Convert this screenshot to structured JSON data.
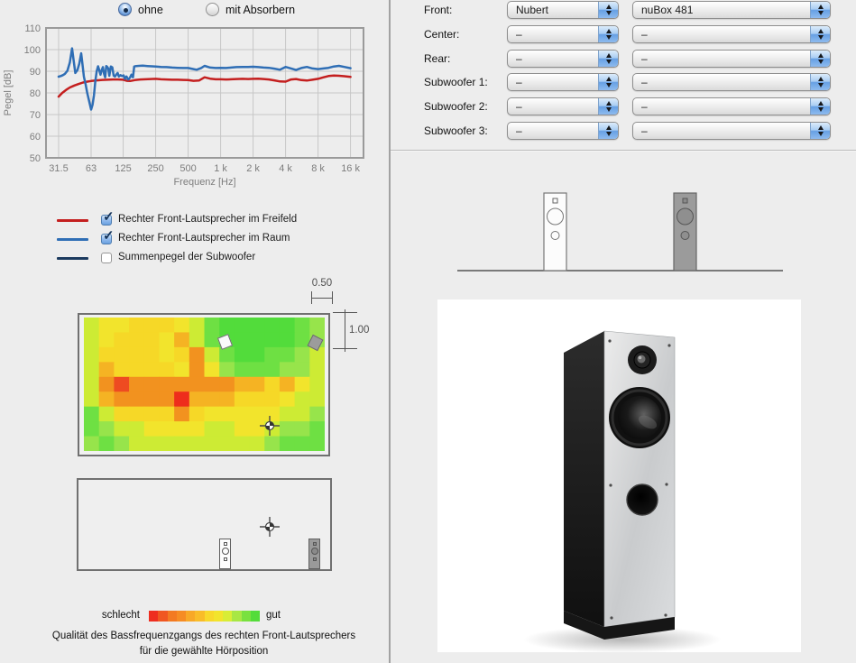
{
  "absorber_toggle": {
    "options": [
      {
        "label": "ohne",
        "selected": true
      },
      {
        "label": "mit Absorbern",
        "selected": false
      }
    ]
  },
  "icons": {
    "checkmark": "✓"
  },
  "legend": {
    "items": [
      {
        "label": "Rechter Front-Lautsprecher im Freifeld",
        "color": "#c41f1f",
        "checked": true
      },
      {
        "label": "Rechter Front-Lautsprecher im Raum",
        "color": "#2f6eb5",
        "checked": true
      },
      {
        "label": "Summenpegel der Subwoofer",
        "color": "#1b3a5e",
        "checked": false
      }
    ]
  },
  "room_top_view": {
    "dim_width_label": "0.50",
    "dim_height_label": "1.00"
  },
  "quality_scale": {
    "left_label": "schlecht",
    "right_label": "gut",
    "colors": [
      "#ee2e20",
      "#f05721",
      "#f37a22",
      "#f68c24",
      "#f8a827",
      "#f9bc29",
      "#f8d82b",
      "#f2e42c",
      "#d8ed36",
      "#a8e744",
      "#79e13f",
      "#54dc3a"
    ]
  },
  "caption": {
    "line1": "Qualität des Bassfrequenzgangs des rechten Front-Lautsprechers",
    "line2": "für die gewählte Hörposition"
  },
  "speaker_config": {
    "rows": [
      {
        "label": "Front:",
        "brand": "Nubert",
        "model": "nuBox 481"
      },
      {
        "label": "Center:",
        "brand": "–",
        "model": "–"
      },
      {
        "label": "Rear:",
        "brand": "–",
        "model": "–"
      },
      {
        "label": "Subwoofer 1:",
        "brand": "–",
        "model": "–"
      },
      {
        "label": "Subwoofer 2:",
        "brand": "–",
        "model": "–"
      },
      {
        "label": "Subwoofer 3:",
        "brand": "–",
        "model": "–"
      }
    ]
  },
  "chart_data": [
    {
      "type": "line",
      "title": "",
      "xlabel": "Frequenz [Hz]",
      "ylabel": "Pegel [dB]",
      "xscale": "log",
      "ylim": [
        50,
        110
      ],
      "grid": true,
      "yticks": [
        110,
        100,
        90,
        80,
        70,
        60,
        50
      ],
      "xticks": [
        {
          "f": 31.5,
          "label": "31.5"
        },
        {
          "f": 63,
          "label": "63"
        },
        {
          "f": 125,
          "label": "125"
        },
        {
          "f": 250,
          "label": "250"
        },
        {
          "f": 500,
          "label": "500"
        },
        {
          "f": 1000,
          "label": "1 k"
        },
        {
          "f": 2000,
          "label": "2 k"
        },
        {
          "f": 4000,
          "label": "4 k"
        },
        {
          "f": 8000,
          "label": "8 k"
        },
        {
          "f": 16000,
          "label": "16 k"
        }
      ],
      "series": [
        {
          "name": "Rechter Front-Lautsprecher im Freifeld",
          "color": "#c41f1f",
          "points": [
            [
              31.5,
              78.3
            ],
            [
              34,
              80
            ],
            [
              37,
              81.4
            ],
            [
              40,
              82.5
            ],
            [
              44,
              83.4
            ],
            [
              48,
              84.1
            ],
            [
              53,
              84.8
            ],
            [
              58,
              85.2
            ],
            [
              63,
              85.5
            ],
            [
              71,
              85.8
            ],
            [
              80,
              86
            ],
            [
              90,
              86.1
            ],
            [
              100,
              86.2
            ],
            [
              112,
              86.2
            ],
            [
              125,
              86.1
            ],
            [
              135,
              85.6
            ],
            [
              145,
              85.5
            ],
            [
              160,
              85.9
            ],
            [
              180,
              86.2
            ],
            [
              200,
              86.3
            ],
            [
              224,
              86.4
            ],
            [
              250,
              86.5
            ],
            [
              280,
              86.3
            ],
            [
              315,
              86.2
            ],
            [
              355,
              86.1
            ],
            [
              400,
              86.1
            ],
            [
              450,
              86
            ],
            [
              500,
              85.9
            ],
            [
              560,
              85.6
            ],
            [
              630,
              85.7
            ],
            [
              710,
              87.2
            ],
            [
              800,
              86.6
            ],
            [
              900,
              86.3
            ],
            [
              1000,
              86.3
            ],
            [
              1120,
              86.2
            ],
            [
              1250,
              86.3
            ],
            [
              1400,
              86.4
            ],
            [
              1600,
              86.5
            ],
            [
              1800,
              86.4
            ],
            [
              2000,
              86.5
            ],
            [
              2240,
              86.6
            ],
            [
              2500,
              86.4
            ],
            [
              2800,
              86.2
            ],
            [
              3150,
              85.8
            ],
            [
              3550,
              85.3
            ],
            [
              4000,
              85.2
            ],
            [
              4500,
              86.2
            ],
            [
              5000,
              86.4
            ],
            [
              5600,
              85.9
            ],
            [
              6300,
              85.7
            ],
            [
              7100,
              86.1
            ],
            [
              8000,
              86.5
            ],
            [
              9000,
              87.2
            ],
            [
              10000,
              87.8
            ],
            [
              11200,
              88
            ],
            [
              12500,
              87.9
            ],
            [
              14000,
              87.7
            ],
            [
              16000,
              87.4
            ]
          ]
        },
        {
          "name": "Rechter Front-Lautsprecher im Raum",
          "color": "#2f6eb5",
          "points": [
            [
              31.5,
              87.5
            ],
            [
              33,
              87.8
            ],
            [
              34.5,
              88.2
            ],
            [
              36,
              88.8
            ],
            [
              38,
              90.2
            ],
            [
              40,
              94
            ],
            [
              42,
              100.6
            ],
            [
              43.5,
              94.5
            ],
            [
              45,
              89.2
            ],
            [
              47,
              90.5
            ],
            [
              49,
              93.5
            ],
            [
              51,
              98.3
            ],
            [
              52.5,
              93
            ],
            [
              54,
              87.5
            ],
            [
              56,
              84
            ],
            [
              58,
              80
            ],
            [
              60,
              76.8
            ],
            [
              63,
              72.3
            ],
            [
              65,
              74.5
            ],
            [
              67,
              79
            ],
            [
              69,
              85.5
            ],
            [
              71,
              90
            ],
            [
              73,
              92.3
            ],
            [
              75,
              90.4
            ],
            [
              77,
              88.4
            ],
            [
              79,
              90.6
            ],
            [
              81,
              91.9
            ],
            [
              83,
              88.9
            ],
            [
              85,
              87.2
            ],
            [
              87,
              92.4
            ],
            [
              89,
              92
            ],
            [
              91,
              91.2
            ],
            [
              93,
              87.9
            ],
            [
              96,
              92.2
            ],
            [
              99,
              91.8
            ],
            [
              102,
              88
            ],
            [
              105,
              87.6
            ],
            [
              108,
              88.5
            ],
            [
              111,
              89.2
            ],
            [
              114,
              87.6
            ],
            [
              118,
              88.2
            ],
            [
              122,
              87.8
            ],
            [
              126,
              88.1
            ],
            [
              130,
              86.5
            ],
            [
              134,
              87.6
            ],
            [
              139,
              86.2
            ],
            [
              144,
              86.9
            ],
            [
              149,
              88.4
            ],
            [
              154,
              87.2
            ],
            [
              158,
              92.2
            ],
            [
              165,
              92.4
            ],
            [
              175,
              92.5
            ],
            [
              190,
              92.6
            ],
            [
              210,
              92.4
            ],
            [
              230,
              92.3
            ],
            [
              250,
              92.2
            ],
            [
              280,
              92
            ],
            [
              315,
              91.9
            ],
            [
              355,
              91.7
            ],
            [
              400,
              91.6
            ],
            [
              450,
              91.5
            ],
            [
              500,
              91.5
            ],
            [
              560,
              91
            ],
            [
              600,
              90.7
            ],
            [
              660,
              91.5
            ],
            [
              710,
              92.5
            ],
            [
              800,
              91.7
            ],
            [
              900,
              91.5
            ],
            [
              1000,
              91.6
            ],
            [
              1120,
              91.5
            ],
            [
              1250,
              91.7
            ],
            [
              1400,
              91.9
            ],
            [
              1600,
              92
            ],
            [
              1800,
              92
            ],
            [
              2000,
              92.1
            ],
            [
              2240,
              91.9
            ],
            [
              2500,
              91.7
            ],
            [
              2800,
              91.6
            ],
            [
              3150,
              91.2
            ],
            [
              3550,
              90.7
            ],
            [
              4000,
              92
            ],
            [
              4500,
              91.3
            ],
            [
              5000,
              90.6
            ],
            [
              5600,
              91.5
            ],
            [
              6300,
              92
            ],
            [
              7100,
              91.3
            ],
            [
              8000,
              91
            ],
            [
              9000,
              91.3
            ],
            [
              10000,
              91.6
            ],
            [
              11200,
              92.2
            ],
            [
              12500,
              92.5
            ],
            [
              14000,
              92
            ],
            [
              16000,
              91.4
            ]
          ]
        }
      ]
    },
    {
      "type": "heatmap",
      "title": "",
      "rows": 9,
      "cols": 16,
      "grid": [
        [
          "#cdeb34",
          "#f2e42c",
          "#f2e42c",
          "#f6d827",
          "#f6d827",
          "#f6d827",
          "#f2e42c",
          "#cdeb34",
          "#6ee043",
          "#52dc3b",
          "#52dc3b",
          "#52dc3b",
          "#52dc3b",
          "#52dc3b",
          "#6ee043",
          "#97e44b"
        ],
        [
          "#cdeb34",
          "#f2e42c",
          "#f6d827",
          "#f6d827",
          "#f6d827",
          "#f2e42c",
          "#f5b323",
          "#cdeb34",
          "#6ee043",
          "#52dc3b",
          "#52dc3b",
          "#52dc3b",
          "#52dc3b",
          "#52dc3b",
          "#6ee043",
          "#97e44b"
        ],
        [
          "#cdeb34",
          "#f6d827",
          "#f6d827",
          "#f6d827",
          "#f6d827",
          "#f2e42c",
          "#f6d827",
          "#f2921f",
          "#cdeb34",
          "#6ee043",
          "#52dc3b",
          "#52dc3b",
          "#6ee043",
          "#6ee043",
          "#97e44b",
          "#cdeb34"
        ],
        [
          "#cdeb34",
          "#f5b323",
          "#f6d827",
          "#f6d827",
          "#f6d827",
          "#f6d827",
          "#f2e42c",
          "#f2921f",
          "#f2e42c",
          "#97e44b",
          "#6ee043",
          "#6ee043",
          "#6ee043",
          "#97e44b",
          "#97e44b",
          "#cdeb34"
        ],
        [
          "#cdeb34",
          "#f2921f",
          "#ee4b21",
          "#f2921f",
          "#f2921f",
          "#f2921f",
          "#f2921f",
          "#f2921f",
          "#f2921f",
          "#f2921f",
          "#f5b323",
          "#f5b323",
          "#f6d827",
          "#f5b323",
          "#f2e42c",
          "#cdeb34"
        ],
        [
          "#cdeb34",
          "#f5b323",
          "#f2921f",
          "#f2921f",
          "#f2921f",
          "#f2921f",
          "#ee2d1c",
          "#f5b323",
          "#f5b323",
          "#f5b323",
          "#f6d827",
          "#f6d827",
          "#f6d827",
          "#f2e42c",
          "#cdeb34",
          "#cdeb34"
        ],
        [
          "#6ee043",
          "#cdeb34",
          "#f6d827",
          "#f6d827",
          "#f6d827",
          "#f6d827",
          "#f2921f",
          "#f6d827",
          "#f2e42c",
          "#f2e42c",
          "#f2e42c",
          "#f2e42c",
          "#f2e42c",
          "#cdeb34",
          "#cdeb34",
          "#97e44b"
        ],
        [
          "#6ee043",
          "#97e44b",
          "#cdeb34",
          "#cdeb34",
          "#f2e42c",
          "#f2e42c",
          "#f2e42c",
          "#f2e42c",
          "#cdeb34",
          "#cdeb34",
          "#f2e42c",
          "#f2e42c",
          "#cdeb34",
          "#97e44b",
          "#97e44b",
          "#6ee043"
        ],
        [
          "#97e44b",
          "#6ee043",
          "#97e44b",
          "#cdeb34",
          "#cdeb34",
          "#cdeb34",
          "#cdeb34",
          "#cdeb34",
          "#cdeb34",
          "#cdeb34",
          "#cdeb34",
          "#cdeb34",
          "#97e44b",
          "#6ee043",
          "#6ee043",
          "#6ee043"
        ]
      ]
    }
  ]
}
